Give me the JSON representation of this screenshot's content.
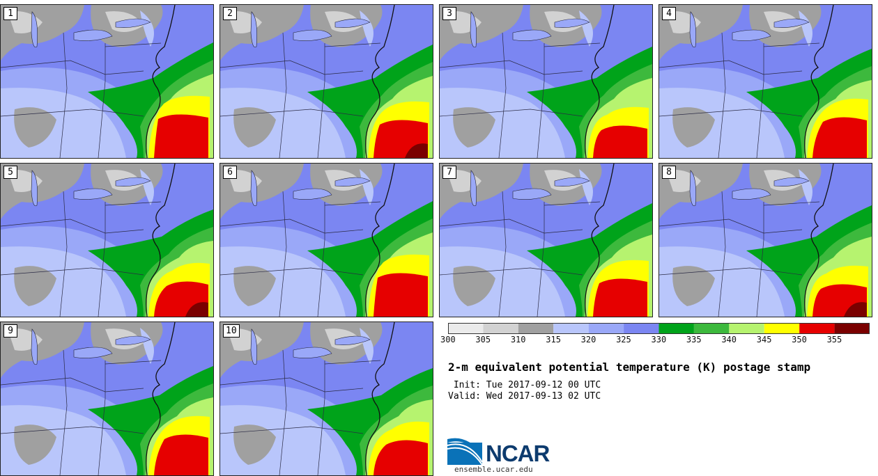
{
  "panels": [
    {
      "label": "1",
      "variant": 0
    },
    {
      "label": "2",
      "variant": 1
    },
    {
      "label": "3",
      "variant": 2
    },
    {
      "label": "4",
      "variant": 3
    },
    {
      "label": "5",
      "variant": 4
    },
    {
      "label": "6",
      "variant": 5
    },
    {
      "label": "7",
      "variant": 6
    },
    {
      "label": "8",
      "variant": 7
    },
    {
      "label": "9",
      "variant": 8
    },
    {
      "label": "10",
      "variant": 9
    }
  ],
  "colorbar": {
    "bins": [
      300,
      305,
      310,
      315,
      320,
      325,
      330,
      335,
      340,
      345,
      350,
      355,
      360
    ],
    "colors": [
      "#ebebeb",
      "#d2d2d2",
      "#a0a0a0",
      "#b9c6fb",
      "#9aa8f8",
      "#7b86f2",
      "#00a31a",
      "#3db93d",
      "#b6f36f",
      "#ffff00",
      "#e60000",
      "#7a0000"
    ],
    "tick_labels": [
      "300",
      "305",
      "310",
      "315",
      "320",
      "325",
      "330",
      "335",
      "340",
      "345",
      "350",
      "355"
    ]
  },
  "title": "2-m equivalent potential temperature (K) postage stamp",
  "init": " Init: Tue 2017-09-12 00 UTC",
  "valid": "Valid: Wed 2017-09-13 02 UTC",
  "logo": {
    "text": "NCAR",
    "site": "ensemble.ucar.edu",
    "color": "#0a72b8"
  }
}
